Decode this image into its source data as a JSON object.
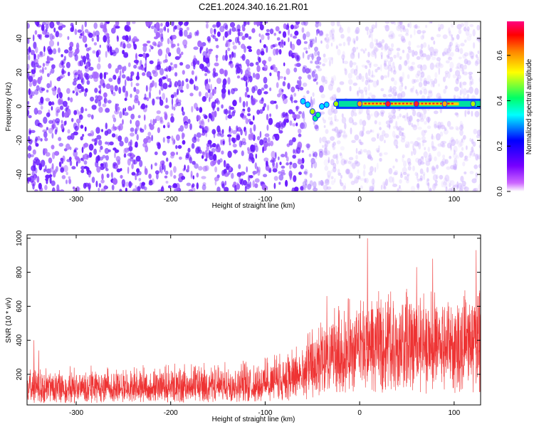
{
  "title": "C2E1.2024.340.16.21.R01",
  "chart_data": [
    {
      "type": "heatmap",
      "xlabel": "Height of straight line (km)",
      "ylabel": "Frequency (Hz)",
      "xlim": [
        -352,
        128
      ],
      "ylim": [
        -50,
        50
      ],
      "xticks": [
        -300,
        -200,
        -100,
        0,
        100
      ],
      "yticks": [
        -40,
        -20,
        0,
        20,
        40
      ],
      "colorbar": {
        "label": "Normalized spectral amplitude",
        "range": [
          0.0,
          0.75
        ],
        "ticks": [
          "0.0",
          "0.2",
          "0.4",
          "0.6"
        ],
        "colors": [
          "#ffffff",
          "#cc66ff",
          "#7700ff",
          "#0000ff",
          "#00ffff",
          "#00ff66",
          "#ffff00",
          "#ff8800",
          "#ff0000",
          "#ff0080"
        ]
      },
      "features": [
        {
          "x": -60,
          "y": 3,
          "amplitude": 0.35
        },
        {
          "x": -55,
          "y": 1,
          "amplitude": 0.3
        },
        {
          "x": -50,
          "y": -3,
          "amplitude": 0.45
        },
        {
          "x": -47,
          "y": -7,
          "amplitude": 0.4
        },
        {
          "x": -44,
          "y": -5,
          "amplitude": 0.4
        },
        {
          "x": -40,
          "y": 0,
          "amplitude": 0.3
        },
        {
          "x": -35,
          "y": 1,
          "amplitude": 0.3
        },
        {
          "x": -25,
          "y": 1.5,
          "amplitude": 0.45
        },
        {
          "x": 0,
          "y": 1.5,
          "amplitude": 0.55
        },
        {
          "x": 30,
          "y": 1.5,
          "amplitude": 0.7
        },
        {
          "x": 60,
          "y": 1.5,
          "amplitude": 0.7
        },
        {
          "x": 90,
          "y": 1.5,
          "amplitude": 0.6
        },
        {
          "x": 120,
          "y": 1.5,
          "amplitude": 0.45
        }
      ]
    },
    {
      "type": "line",
      "xlabel": "Height of straight line (km)",
      "ylabel": "SNR (10 * v/v)",
      "xlim": [
        -352,
        128
      ],
      "ylim": [
        20,
        1020
      ],
      "xticks": [
        -300,
        -200,
        -100,
        0,
        100
      ],
      "yticks": [
        200,
        400,
        600,
        800,
        1000
      ],
      "color": "#ee3333",
      "x": [
        -350,
        -300,
        -250,
        -200,
        -150,
        -100,
        -80,
        -60,
        -40,
        -20,
        0,
        20,
        40,
        60,
        80,
        100,
        125
      ],
      "envelope_low": [
        30,
        30,
        35,
        35,
        35,
        40,
        45,
        50,
        60,
        80,
        90,
        90,
        90,
        80,
        90,
        90,
        90
      ],
      "envelope_mid": [
        120,
        120,
        125,
        130,
        135,
        150,
        170,
        200,
        270,
        330,
        360,
        380,
        390,
        390,
        380,
        385,
        380
      ],
      "envelope_high": [
        240,
        250,
        255,
        265,
        270,
        300,
        340,
        400,
        560,
        640,
        660,
        690,
        700,
        720,
        690,
        710,
        700
      ],
      "peaks": [
        {
          "x": -345,
          "y": 400
        },
        {
          "x": -340,
          "y": 340
        },
        {
          "x": -35,
          "y": 660
        },
        {
          "x": 8,
          "y": 1000
        },
        {
          "x": 60,
          "y": 830
        },
        {
          "x": 77,
          "y": 880
        },
        {
          "x": 123,
          "y": 930
        }
      ]
    }
  ]
}
